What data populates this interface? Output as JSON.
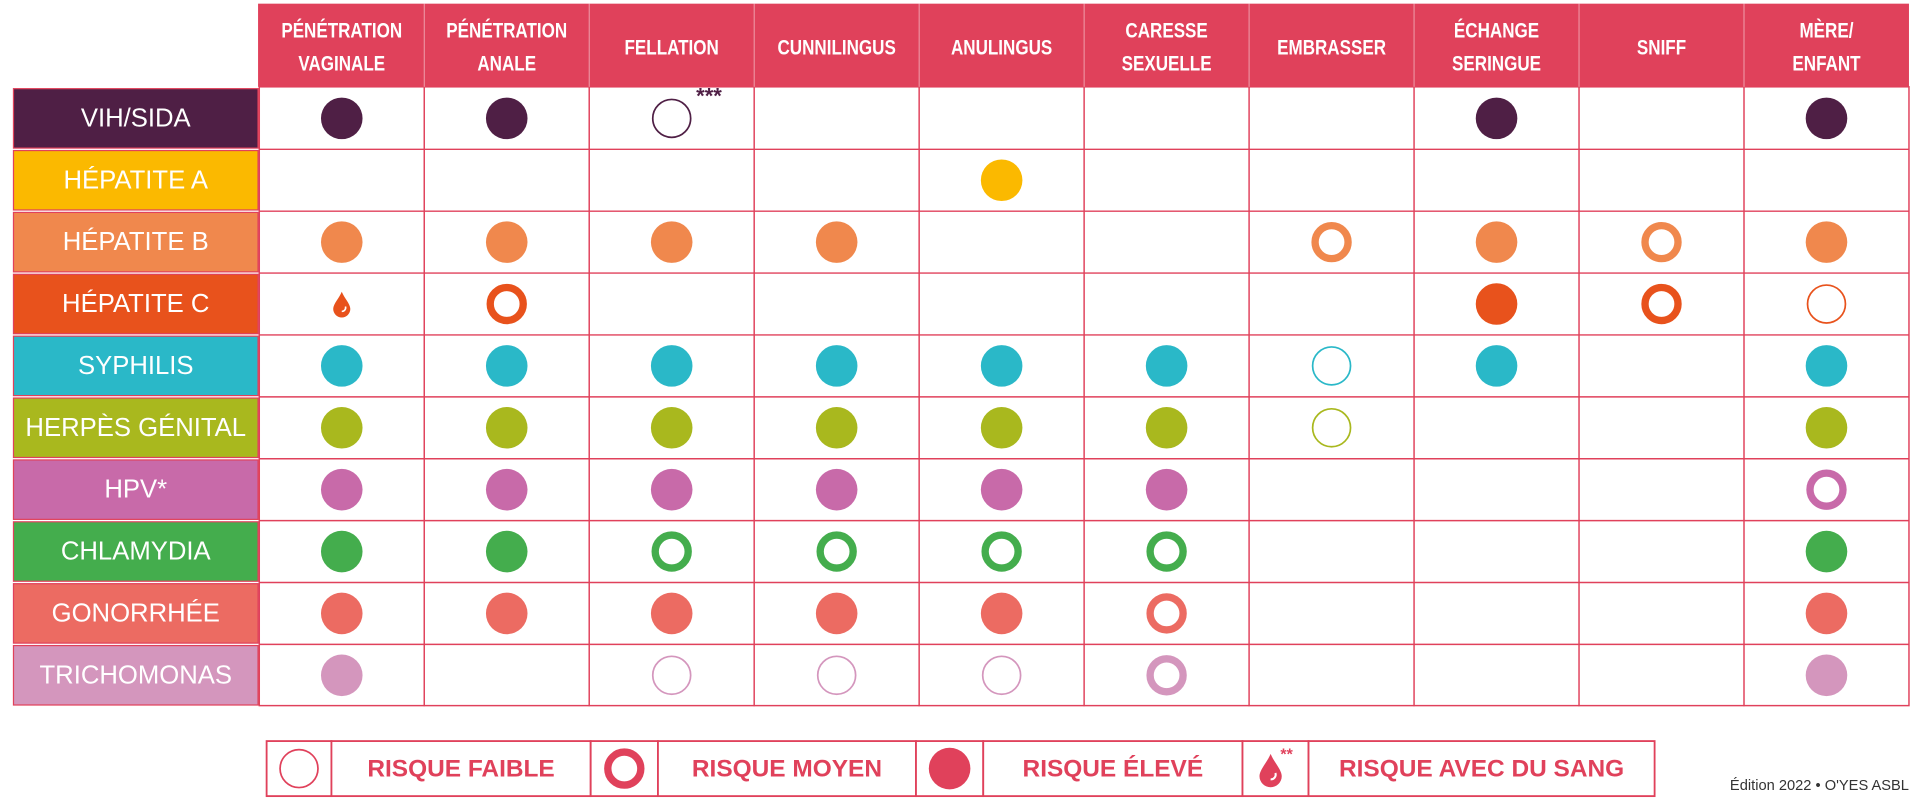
{
  "table": {
    "columns": [
      [
        "PÉNÉTRATION",
        "VAGINALE"
      ],
      [
        "PÉNÉTRATION",
        "ANALE"
      ],
      [
        "FELLATION"
      ],
      [
        "CUNNILINGUS"
      ],
      [
        "ANULINGUS"
      ],
      [
        "CARESSE",
        "SEXUELLE"
      ],
      [
        "EMBRASSER"
      ],
      [
        "ÉCHANGE",
        "SERINGUE"
      ],
      [
        "SNIFF"
      ],
      [
        "MÈRE/",
        "ENFANT"
      ]
    ],
    "rows": [
      {
        "label": "VIH/SIDA",
        "color": "#4f1f45",
        "cells": [
          2,
          2,
          0,
          null,
          null,
          null,
          null,
          2,
          null,
          2
        ],
        "notes": [
          null,
          null,
          "***",
          null,
          null,
          null,
          null,
          null,
          null,
          null
        ]
      },
      {
        "label": "HÉPATITE A",
        "color": "#fbb900",
        "cells": [
          null,
          null,
          null,
          null,
          2,
          null,
          null,
          null,
          null,
          null
        ]
      },
      {
        "label": "HÉPATITE B",
        "color": "#f0884d",
        "cells": [
          2,
          2,
          2,
          2,
          null,
          null,
          1,
          2,
          1,
          2
        ]
      },
      {
        "label": "HÉPATITE C",
        "color": "#e8521c",
        "cells": [
          3,
          1,
          null,
          null,
          null,
          null,
          null,
          2,
          1,
          0
        ]
      },
      {
        "label": "SYPHILIS",
        "color": "#2ab8c8",
        "cells": [
          2,
          2,
          2,
          2,
          2,
          2,
          0,
          2,
          null,
          2
        ]
      },
      {
        "label": "HERPÈS GÉNITAL",
        "color": "#a9b81e",
        "cells": [
          2,
          2,
          2,
          2,
          2,
          2,
          0,
          null,
          null,
          2
        ]
      },
      {
        "label": "HPV*",
        "color": "#c86aa9",
        "cells": [
          2,
          2,
          2,
          2,
          2,
          2,
          null,
          null,
          null,
          1
        ]
      },
      {
        "label": "CHLAMYDIA",
        "color": "#44ad4d",
        "cells": [
          2,
          2,
          1,
          1,
          1,
          1,
          null,
          null,
          null,
          2
        ]
      },
      {
        "label": "GONORRHÉE",
        "color": "#ec6b62",
        "cells": [
          2,
          2,
          2,
          2,
          2,
          1,
          null,
          null,
          null,
          2
        ]
      },
      {
        "label": "TRICHOMONAS",
        "color": "#d496bd",
        "cells": [
          2,
          null,
          0,
          0,
          0,
          1,
          null,
          null,
          null,
          2
        ]
      }
    ]
  },
  "legend": [
    {
      "label": "RISQUE FAIBLE"
    },
    {
      "label": "RISQUE MOYEN"
    },
    {
      "label": "RISQUE ÉLEVÉ"
    },
    {
      "label": "RISQUE  AVEC DU SANG",
      "note": "**"
    }
  ],
  "footer": "Édition 2022 • O'YES ASBL"
}
